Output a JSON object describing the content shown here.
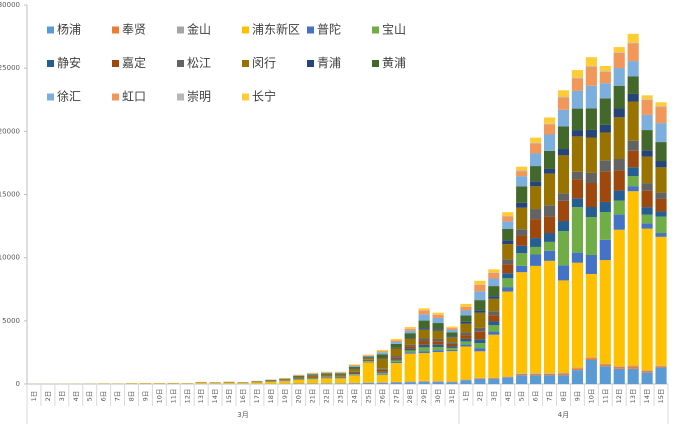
{
  "chart_data": {
    "type": "stacked_bar",
    "groups": [
      {
        "label": "3月",
        "categories": [
          "1日",
          "2日",
          "3日",
          "4日",
          "5日",
          "6日",
          "7日",
          "8日",
          "9日",
          "10日",
          "11日",
          "12日",
          "13日",
          "14日",
          "15日",
          "16日",
          "17日",
          "18日",
          "19日",
          "20日",
          "21日",
          "22日",
          "23日",
          "24日",
          "25日",
          "26日",
          "27日",
          "28日",
          "29日",
          "30日",
          "31日"
        ]
      },
      {
        "label": "4月",
        "categories": [
          "1日",
          "2日",
          "3日",
          "4日",
          "5日",
          "6日",
          "7日",
          "8日",
          "9日",
          "10日",
          "11日",
          "12日",
          "13日",
          "14日",
          "15日"
        ]
      }
    ],
    "ylim": [
      0,
      30000
    ],
    "yticks": [
      0,
      5000,
      10000,
      15000,
      20000,
      25000,
      30000
    ],
    "series": [
      {
        "name": "杨浦",
        "color": "#5b9bd5",
        "values": [
          0,
          0,
          0,
          0,
          1,
          1,
          1,
          2,
          2,
          3,
          4,
          3,
          8,
          6,
          8,
          6,
          10,
          15,
          20,
          30,
          35,
          40,
          40,
          60,
          80,
          100,
          120,
          150,
          180,
          170,
          150,
          300,
          400,
          400,
          500,
          700,
          700,
          700,
          700,
          1100,
          1900,
          1400,
          1200,
          1200,
          900,
          1300
        ]
      },
      {
        "name": "奉贤",
        "color": "#ed7d31",
        "values": [
          0,
          0,
          0,
          0,
          0,
          0,
          0,
          0,
          1,
          1,
          1,
          1,
          2,
          2,
          3,
          2,
          3,
          5,
          5,
          8,
          10,
          10,
          10,
          15,
          20,
          25,
          30,
          40,
          50,
          45,
          40,
          50,
          60,
          70,
          80,
          100,
          100,
          100,
          150,
          150,
          150,
          150,
          150,
          200,
          150,
          100
        ]
      },
      {
        "name": "金山",
        "color": "#a5a5a5",
        "values": [
          0,
          0,
          0,
          0,
          0,
          0,
          0,
          0,
          0,
          0,
          1,
          1,
          1,
          1,
          1,
          1,
          2,
          2,
          3,
          4,
          5,
          5,
          5,
          8,
          10,
          10,
          15,
          15,
          20,
          20,
          15,
          20,
          30,
          30,
          40,
          50,
          50,
          50,
          50,
          50,
          60,
          60,
          60,
          60,
          50,
          50
        ]
      },
      {
        "name": "浦东新区",
        "color": "#ffc000",
        "values": [
          2,
          5,
          10,
          12,
          18,
          30,
          25,
          40,
          45,
          40,
          45,
          35,
          80,
          60,
          80,
          60,
          100,
          140,
          180,
          280,
          330,
          380,
          370,
          600,
          1600,
          600,
          1500,
          2200,
          2200,
          2300,
          2400,
          2600,
          2100,
          3400,
          6700,
          8000,
          8500,
          8900,
          7300,
          8300,
          6600,
          8200,
          10800,
          13800,
          11200,
          10200
        ]
      },
      {
        "name": "普陀",
        "color": "#4472c4",
        "values": [
          0,
          0,
          0,
          0,
          1,
          1,
          1,
          1,
          2,
          2,
          3,
          2,
          5,
          4,
          6,
          5,
          8,
          10,
          15,
          20,
          25,
          25,
          25,
          40,
          40,
          60,
          80,
          100,
          150,
          140,
          100,
          150,
          250,
          250,
          350,
          500,
          900,
          800,
          1200,
          800,
          1500,
          1600,
          1200,
          400,
          400,
          300
        ]
      },
      {
        "name": "宝山",
        "color": "#70ad47",
        "values": [
          0,
          1,
          2,
          2,
          3,
          4,
          3,
          5,
          6,
          5,
          6,
          5,
          10,
          8,
          10,
          8,
          12,
          15,
          20,
          30,
          35,
          40,
          40,
          60,
          60,
          100,
          120,
          150,
          300,
          250,
          150,
          250,
          400,
          500,
          700,
          1000,
          600,
          700,
          2700,
          3600,
          3000,
          2200,
          1100,
          800,
          700,
          1300
        ]
      },
      {
        "name": "静安",
        "color": "#255e91",
        "values": [
          0,
          0,
          0,
          0,
          0,
          1,
          1,
          2,
          2,
          2,
          3,
          3,
          5,
          5,
          6,
          5,
          8,
          12,
          15,
          25,
          30,
          30,
          30,
          50,
          40,
          80,
          100,
          120,
          200,
          180,
          120,
          200,
          300,
          300,
          400,
          600,
          700,
          700,
          800,
          700,
          800,
          800,
          800,
          700,
          600,
          400
        ]
      },
      {
        "name": "嘉定",
        "color": "#9e480e",
        "values": [
          0,
          0,
          0,
          1,
          1,
          2,
          2,
          3,
          3,
          3,
          4,
          3,
          8,
          8,
          10,
          10,
          15,
          20,
          30,
          40,
          50,
          50,
          50,
          80,
          60,
          150,
          150,
          200,
          300,
          280,
          200,
          300,
          600,
          500,
          700,
          800,
          1500,
          1300,
          1600,
          1500,
          1900,
          2400,
          1600,
          1300,
          1300,
          1000
        ]
      },
      {
        "name": "松江",
        "color": "#636363",
        "values": [
          0,
          0,
          0,
          0,
          1,
          1,
          1,
          2,
          2,
          2,
          3,
          2,
          5,
          5,
          6,
          5,
          8,
          12,
          15,
          25,
          30,
          30,
          30,
          50,
          40,
          80,
          100,
          120,
          200,
          180,
          120,
          200,
          300,
          300,
          400,
          500,
          800,
          900,
          600,
          600,
          800,
          900,
          900,
          800,
          600,
          500
        ]
      },
      {
        "name": "闵行",
        "color": "#997300",
        "values": [
          0,
          0,
          0,
          1,
          2,
          3,
          2,
          4,
          5,
          4,
          5,
          4,
          15,
          15,
          20,
          20,
          30,
          45,
          60,
          90,
          110,
          120,
          120,
          200,
          120,
          800,
          600,
          500,
          700,
          650,
          400,
          700,
          1200,
          1000,
          1200,
          1700,
          1800,
          2500,
          3000,
          2800,
          2800,
          2200,
          3300,
          3100,
          2100,
          2000
        ]
      },
      {
        "name": "青浦",
        "color": "#264478",
        "values": [
          0,
          0,
          0,
          0,
          0,
          0,
          0,
          1,
          1,
          1,
          1,
          1,
          3,
          3,
          4,
          3,
          5,
          8,
          10,
          15,
          20,
          20,
          20,
          30,
          20,
          50,
          60,
          80,
          120,
          110,
          80,
          150,
          200,
          200,
          300,
          400,
          400,
          400,
          500,
          500,
          600,
          600,
          700,
          600,
          500,
          500
        ]
      },
      {
        "name": "黄浦",
        "color": "#43682b",
        "values": [
          0,
          1,
          1,
          0,
          1,
          2,
          2,
          3,
          3,
          3,
          4,
          3,
          8,
          10,
          15,
          12,
          20,
          30,
          45,
          70,
          85,
          90,
          90,
          150,
          80,
          300,
          300,
          350,
          600,
          500,
          300,
          500,
          800,
          800,
          900,
          1300,
          1200,
          1400,
          1800,
          1700,
          1700,
          2100,
          1800,
          1400,
          1600,
          1500
        ]
      },
      {
        "name": "徐汇",
        "color": "#7cafdd",
        "values": [
          0,
          0,
          0,
          1,
          1,
          1,
          1,
          2,
          2,
          2,
          3,
          2,
          6,
          6,
          8,
          7,
          12,
          20,
          25,
          40,
          50,
          55,
          55,
          90,
          60,
          150,
          150,
          200,
          500,
          400,
          200,
          400,
          700,
          600,
          600,
          800,
          1000,
          1300,
          1300,
          1400,
          1800,
          1200,
          1400,
          1200,
          1200,
          1500
        ]
      },
      {
        "name": "虹口",
        "color": "#f1975a",
        "values": [
          0,
          0,
          0,
          0,
          0,
          1,
          1,
          1,
          2,
          2,
          2,
          2,
          5,
          5,
          6,
          5,
          10,
          15,
          20,
          30,
          40,
          40,
          45,
          70,
          50,
          100,
          120,
          150,
          300,
          250,
          150,
          300,
          500,
          450,
          400,
          400,
          800,
          800,
          1000,
          1000,
          1500,
          900,
          1200,
          1400,
          1200,
          1300
        ]
      },
      {
        "name": "崇明",
        "color": "#b7b7b7",
        "values": [
          0,
          0,
          0,
          0,
          0,
          0,
          0,
          0,
          0,
          0,
          0,
          0,
          1,
          1,
          1,
          1,
          2,
          2,
          3,
          4,
          5,
          5,
          5,
          8,
          5,
          10,
          15,
          15,
          20,
          20,
          15,
          20,
          30,
          30,
          30,
          50,
          50,
          50,
          50,
          50,
          60,
          60,
          60,
          60,
          50,
          50
        ]
      },
      {
        "name": "长宁",
        "color": "#ffcd33",
        "values": [
          0,
          0,
          0,
          0,
          0,
          0,
          0,
          1,
          1,
          1,
          2,
          1,
          5,
          5,
          6,
          5,
          8,
          12,
          15,
          25,
          30,
          30,
          35,
          50,
          40,
          80,
          100,
          120,
          150,
          150,
          100,
          200,
          300,
          250,
          300,
          300,
          400,
          500,
          500,
          600,
          700,
          400,
          400,
          700,
          300,
          300
        ]
      }
    ]
  }
}
